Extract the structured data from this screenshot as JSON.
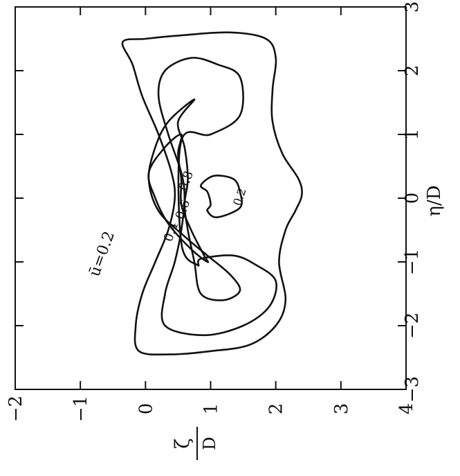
{
  "chart_data": {
    "type": "contour",
    "orientation": "rotated-90-ccw",
    "x_axis": {
      "label_symbol": "η",
      "label_denominator": "D",
      "range": [
        -3,
        3
      ],
      "ticks": [
        -3,
        -2,
        -1,
        0,
        1,
        2,
        3
      ],
      "tick_labels": [
        "−3",
        "−2",
        "−1",
        "0",
        "1",
        "2",
        "3"
      ]
    },
    "y_axis": {
      "label_symbol": "ζ",
      "label_denominator": "D",
      "range": [
        4,
        -2
      ],
      "ticks": [
        -2,
        -1,
        0,
        1,
        2,
        3,
        4
      ],
      "tick_labels": [
        "−2",
        "−1",
        "0",
        "1",
        "2",
        "3",
        "4"
      ]
    },
    "contours": [
      {
        "level": 0.2,
        "label": "ū=0.2",
        "points": [
          [
            2.45,
            -0.35
          ],
          [
            2.1,
            -0.2
          ],
          [
            1.6,
            -0.05
          ],
          [
            1.0,
            0.2
          ],
          [
            0.4,
            0.4
          ],
          [
            0.0,
            0.45
          ],
          [
            -0.5,
            0.35
          ],
          [
            -1.0,
            0.15
          ],
          [
            -1.5,
            -0.05
          ],
          [
            -2.0,
            -0.15
          ],
          [
            -2.4,
            -0.1
          ],
          [
            -2.45,
            0.4
          ],
          [
            -2.4,
            1.0
          ],
          [
            -2.3,
            1.6
          ],
          [
            -2.0,
            2.0
          ],
          [
            -1.6,
            2.15
          ],
          [
            -1.0,
            2.05
          ],
          [
            -0.5,
            2.15
          ],
          [
            -0.2,
            2.3
          ],
          [
            0.05,
            2.4
          ],
          [
            0.3,
            2.35
          ],
          [
            0.7,
            2.1
          ],
          [
            1.2,
            1.95
          ],
          [
            1.7,
            1.95
          ],
          [
            2.2,
            2.0
          ],
          [
            2.5,
            1.85
          ],
          [
            2.6,
            1.3
          ],
          [
            2.55,
            0.5
          ],
          [
            2.5,
            0.0
          ],
          [
            2.45,
            -0.35
          ]
        ]
      },
      {
        "level": 0.4,
        "label": "0.4",
        "points": [
          [
            2.0,
            0.3
          ],
          [
            1.6,
            0.2
          ],
          [
            1.0,
            0.35
          ],
          [
            0.4,
            0.55
          ],
          [
            0.0,
            0.6
          ],
          [
            -0.5,
            0.55
          ],
          [
            -1.0,
            0.45
          ],
          [
            -1.5,
            0.3
          ],
          [
            -2.0,
            0.3
          ],
          [
            -2.15,
            0.9
          ],
          [
            -2.0,
            1.5
          ],
          [
            -1.7,
            1.9
          ],
          [
            -1.3,
            2.0
          ],
          [
            -1.05,
            1.7
          ],
          [
            -0.9,
            1.35
          ],
          [
            -0.95,
            0.85
          ],
          [
            -1.05,
            0.8
          ],
          [
            -0.7,
            0.55
          ],
          [
            0.9,
            0.55
          ],
          [
            1.0,
            1.0
          ],
          [
            1.3,
            1.45
          ],
          [
            1.9,
            1.45
          ],
          [
            2.1,
            1.1
          ],
          [
            2.2,
            0.7
          ],
          [
            2.0,
            0.3
          ]
        ]
      },
      {
        "level": 0.6,
        "label": "0.6",
        "points": [
          [
            1.55,
            0.75
          ],
          [
            1.2,
            0.5
          ],
          [
            0.8,
            0.6
          ],
          [
            0.3,
            0.65
          ],
          [
            -0.1,
            0.6
          ],
          [
            -0.5,
            0.65
          ],
          [
            -1.0,
            0.75
          ],
          [
            -1.5,
            0.85
          ],
          [
            -1.6,
            1.2
          ],
          [
            -1.45,
            1.45
          ],
          [
            -1.2,
            1.3
          ],
          [
            -0.9,
            0.95
          ],
          [
            -0.6,
            0.6
          ],
          [
            -0.2,
            0.2
          ],
          [
            0.3,
            0.05
          ],
          [
            0.8,
            0.15
          ],
          [
            1.2,
            0.35
          ],
          [
            1.55,
            0.75
          ]
        ]
      },
      {
        "level": 0.8,
        "label": "0.8",
        "points": [
          [
            1.0,
            0.55
          ],
          [
            0.7,
            0.5
          ],
          [
            0.3,
            0.55
          ],
          [
            -0.1,
            0.55
          ],
          [
            -0.5,
            0.7
          ],
          [
            -0.9,
            0.9
          ],
          [
            -1.0,
            0.95
          ],
          [
            -0.8,
            0.7
          ],
          [
            -0.4,
            0.35
          ],
          [
            0.0,
            0.15
          ],
          [
            0.4,
            0.05
          ],
          [
            0.8,
            0.3
          ],
          [
            1.0,
            0.55
          ]
        ]
      },
      {
        "level": 0.2,
        "label": "0.2",
        "points": [
          [
            0.2,
            0.85
          ],
          [
            0.1,
            0.95
          ],
          [
            -0.1,
            1.0
          ],
          [
            -0.2,
            0.95
          ],
          [
            -0.3,
            1.1
          ],
          [
            -0.15,
            1.45
          ],
          [
            0.1,
            1.45
          ],
          [
            0.3,
            1.35
          ],
          [
            0.35,
            1.05
          ],
          [
            0.2,
            0.85
          ]
        ]
      }
    ]
  }
}
